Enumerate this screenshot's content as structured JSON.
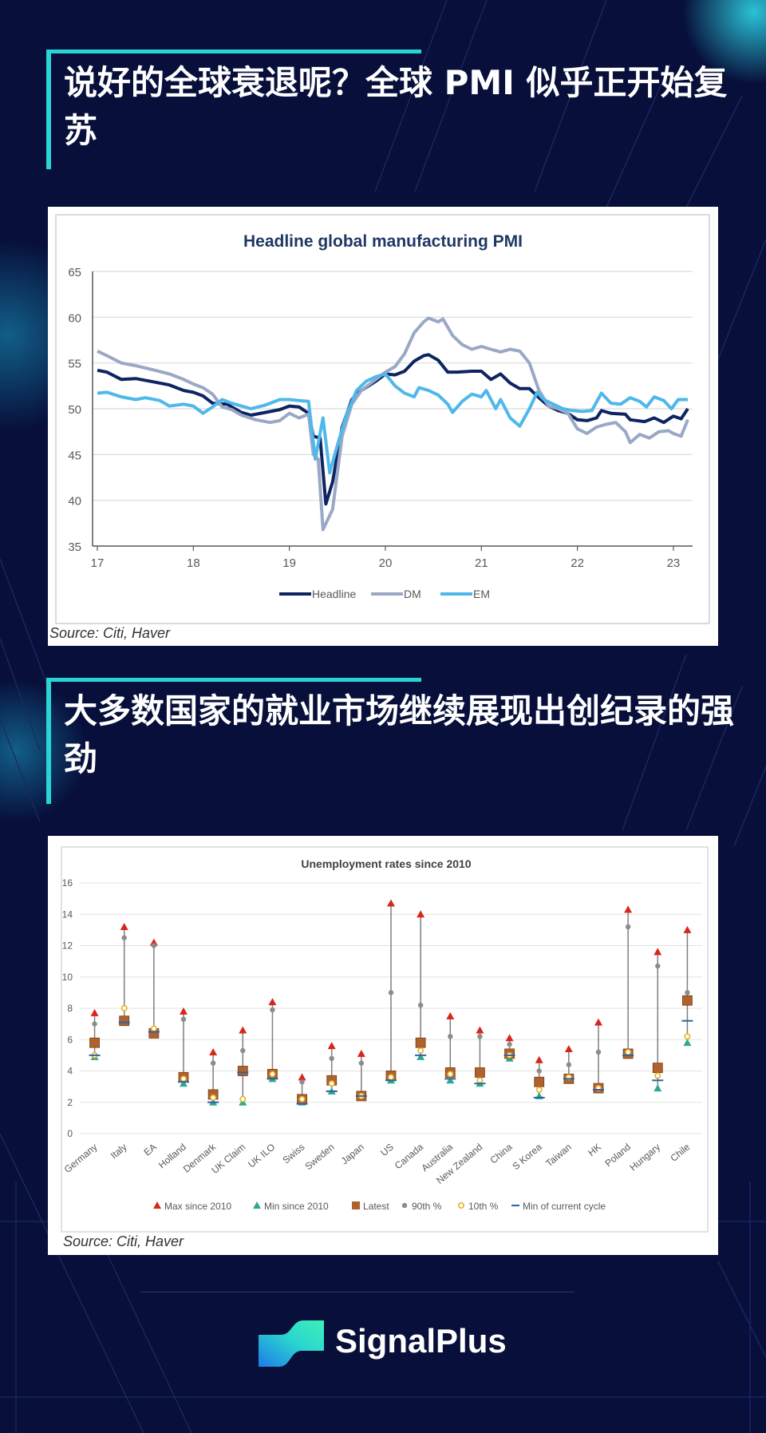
{
  "section1": {
    "heading": "说好的全球衰退呢？全球 PMI 似乎正开始复苏"
  },
  "section2": {
    "heading": "大多数国家的就业市场继续展现出创纪录的强劲"
  },
  "pmi_source": "Source: Citi, Haver",
  "unemp_source": "Source: Citi, Haver",
  "brand": {
    "name": "SignalPlus"
  },
  "colors": {
    "background": "#070f3a",
    "accent": "#29d3d6",
    "headline": "#0d2461",
    "dm": "#9aa8c6",
    "em": "#4fb8ea",
    "max": "#d9261c",
    "min": "#2ea891",
    "latest": "#b0622e",
    "p90": "#8c8c8c",
    "p10": "#e8b020",
    "cyclemin": "#2e62a8"
  },
  "chart_data": [
    {
      "type": "line",
      "title": "Headline global manufacturing PMI",
      "xlabel": "",
      "ylabel": "",
      "ylim": [
        35,
        65
      ],
      "yticks": [
        "65",
        "60",
        "55",
        "50",
        "45",
        "40",
        "35"
      ],
      "xticks": [
        {
          "label": "17",
          "x": 2017
        },
        {
          "label": "18",
          "x": 2018
        },
        {
          "label": "19",
          "x": 2019
        },
        {
          "label": "20",
          "x": 2020
        },
        {
          "label": "21",
          "x": 2021
        },
        {
          "label": "22",
          "x": 2022
        },
        {
          "label": "23",
          "x": 2023
        }
      ],
      "xlim": [
        2016.95,
        2023.2
      ],
      "legend_position": "bottom",
      "series": [
        {
          "name": "Headline",
          "color": "#0d2461",
          "width": 4,
          "points": [
            [
              2017.0,
              54.2
            ],
            [
              2017.1,
              54.0
            ],
            [
              2017.25,
              53.2
            ],
            [
              2017.4,
              53.3
            ],
            [
              2017.6,
              52.9
            ],
            [
              2017.75,
              52.6
            ],
            [
              2017.9,
              52.0
            ],
            [
              2018.0,
              51.8
            ],
            [
              2018.1,
              51.4
            ],
            [
              2018.2,
              50.6
            ],
            [
              2018.35,
              50.5
            ],
            [
              2018.5,
              49.6
            ],
            [
              2018.6,
              49.3
            ],
            [
              2018.75,
              49.6
            ],
            [
              2018.9,
              49.9
            ],
            [
              2019.0,
              50.3
            ],
            [
              2019.1,
              50.2
            ],
            [
              2019.2,
              49.5
            ],
            [
              2019.25,
              47.0
            ],
            [
              2019.32,
              46.8
            ],
            [
              2019.38,
              39.6
            ],
            [
              2019.45,
              42.0
            ],
            [
              2019.55,
              48.0
            ],
            [
              2019.65,
              51.0
            ],
            [
              2019.75,
              52.0
            ],
            [
              2019.9,
              53.0
            ],
            [
              2020.0,
              53.8
            ],
            [
              2020.1,
              53.7
            ],
            [
              2020.2,
              54.1
            ],
            [
              2020.3,
              55.2
            ],
            [
              2020.4,
              55.8
            ],
            [
              2020.45,
              55.9
            ],
            [
              2020.55,
              55.3
            ],
            [
              2020.65,
              54.0
            ],
            [
              2020.75,
              54.0
            ],
            [
              2020.9,
              54.1
            ],
            [
              2021.0,
              54.1
            ],
            [
              2021.1,
              53.2
            ],
            [
              2021.2,
              53.8
            ],
            [
              2021.3,
              52.8
            ],
            [
              2021.4,
              52.2
            ],
            [
              2021.5,
              52.2
            ],
            [
              2021.6,
              51.2
            ],
            [
              2021.7,
              50.3
            ],
            [
              2021.8,
              49.8
            ],
            [
              2021.9,
              49.5
            ],
            [
              2022.0,
              48.8
            ],
            [
              2022.1,
              48.7
            ],
            [
              2022.2,
              49.0
            ],
            [
              2022.25,
              49.8
            ],
            [
              2022.35,
              49.5
            ],
            [
              2022.5,
              49.4
            ],
            [
              2022.55,
              48.8
            ],
            [
              2022.7,
              48.6
            ],
            [
              2022.8,
              49.0
            ],
            [
              2022.9,
              48.5
            ],
            [
              2023.0,
              49.2
            ],
            [
              2023.08,
              48.9
            ],
            [
              2023.15,
              50.0
            ]
          ]
        },
        {
          "name": "DM",
          "color": "#9aa8c6",
          "width": 4,
          "points": [
            [
              2017.0,
              56.3
            ],
            [
              2017.1,
              55.8
            ],
            [
              2017.25,
              55.0
            ],
            [
              2017.4,
              54.7
            ],
            [
              2017.6,
              54.2
            ],
            [
              2017.75,
              53.8
            ],
            [
              2017.9,
              53.2
            ],
            [
              2018.0,
              52.7
            ],
            [
              2018.1,
              52.3
            ],
            [
              2018.2,
              51.6
            ],
            [
              2018.3,
              50.2
            ],
            [
              2018.4,
              49.9
            ],
            [
              2018.5,
              49.3
            ],
            [
              2018.65,
              48.8
            ],
            [
              2018.8,
              48.5
            ],
            [
              2018.9,
              48.7
            ],
            [
              2019.0,
              49.5
            ],
            [
              2019.1,
              49.0
            ],
            [
              2019.2,
              49.4
            ],
            [
              2019.25,
              45.0
            ],
            [
              2019.3,
              44.5
            ],
            [
              2019.35,
              36.8
            ],
            [
              2019.45,
              39.0
            ],
            [
              2019.55,
              47.0
            ],
            [
              2019.65,
              50.5
            ],
            [
              2019.75,
              52.0
            ],
            [
              2019.9,
              53.2
            ],
            [
              2020.0,
              54.0
            ],
            [
              2020.1,
              54.6
            ],
            [
              2020.2,
              56.0
            ],
            [
              2020.3,
              58.3
            ],
            [
              2020.4,
              59.5
            ],
            [
              2020.45,
              59.9
            ],
            [
              2020.55,
              59.5
            ],
            [
              2020.6,
              59.8
            ],
            [
              2020.7,
              58.0
            ],
            [
              2020.8,
              57.0
            ],
            [
              2020.9,
              56.5
            ],
            [
              2021.0,
              56.8
            ],
            [
              2021.1,
              56.5
            ],
            [
              2021.2,
              56.2
            ],
            [
              2021.3,
              56.5
            ],
            [
              2021.4,
              56.3
            ],
            [
              2021.5,
              55.0
            ],
            [
              2021.6,
              52.0
            ],
            [
              2021.7,
              50.3
            ],
            [
              2021.8,
              50.0
            ],
            [
              2021.9,
              49.5
            ],
            [
              2022.0,
              47.8
            ],
            [
              2022.1,
              47.3
            ],
            [
              2022.2,
              48.0
            ],
            [
              2022.3,
              48.3
            ],
            [
              2022.4,
              48.5
            ],
            [
              2022.5,
              47.5
            ],
            [
              2022.55,
              46.3
            ],
            [
              2022.65,
              47.2
            ],
            [
              2022.75,
              46.8
            ],
            [
              2022.85,
              47.5
            ],
            [
              2022.95,
              47.6
            ],
            [
              2023.0,
              47.3
            ],
            [
              2023.08,
              47.0
            ],
            [
              2023.15,
              48.8
            ]
          ]
        },
        {
          "name": "EM",
          "color": "#4fb8ea",
          "width": 4,
          "points": [
            [
              2017.0,
              51.7
            ],
            [
              2017.1,
              51.8
            ],
            [
              2017.25,
              51.3
            ],
            [
              2017.4,
              51.0
            ],
            [
              2017.5,
              51.2
            ],
            [
              2017.65,
              50.9
            ],
            [
              2017.75,
              50.3
            ],
            [
              2017.9,
              50.5
            ],
            [
              2018.0,
              50.3
            ],
            [
              2018.1,
              49.5
            ],
            [
              2018.2,
              50.2
            ],
            [
              2018.3,
              51.0
            ],
            [
              2018.4,
              50.6
            ],
            [
              2018.5,
              50.3
            ],
            [
              2018.6,
              50.0
            ],
            [
              2018.75,
              50.4
            ],
            [
              2018.9,
              51.0
            ],
            [
              2019.0,
              51.0
            ],
            [
              2019.1,
              50.9
            ],
            [
              2019.2,
              50.8
            ],
            [
              2019.27,
              44.5
            ],
            [
              2019.35,
              49.0
            ],
            [
              2019.42,
              43.0
            ],
            [
              2019.5,
              46.0
            ],
            [
              2019.6,
              49.5
            ],
            [
              2019.7,
              52.0
            ],
            [
              2019.8,
              53.0
            ],
            [
              2019.9,
              53.5
            ],
            [
              2020.0,
              53.8
            ],
            [
              2020.1,
              52.5
            ],
            [
              2020.2,
              51.7
            ],
            [
              2020.3,
              51.3
            ],
            [
              2020.35,
              52.3
            ],
            [
              2020.45,
              52.0
            ],
            [
              2020.55,
              51.5
            ],
            [
              2020.65,
              50.5
            ],
            [
              2020.7,
              49.6
            ],
            [
              2020.8,
              50.8
            ],
            [
              2020.9,
              51.6
            ],
            [
              2021.0,
              51.3
            ],
            [
              2021.05,
              52.0
            ],
            [
              2021.15,
              50.0
            ],
            [
              2021.2,
              51.0
            ],
            [
              2021.3,
              49.0
            ],
            [
              2021.4,
              48.1
            ],
            [
              2021.5,
              50.0
            ],
            [
              2021.58,
              51.8
            ],
            [
              2021.65,
              51.0
            ],
            [
              2021.75,
              50.5
            ],
            [
              2021.85,
              50.0
            ],
            [
              2021.95,
              49.8
            ],
            [
              2022.05,
              49.7
            ],
            [
              2022.15,
              49.8
            ],
            [
              2022.25,
              51.7
            ],
            [
              2022.35,
              50.6
            ],
            [
              2022.45,
              50.5
            ],
            [
              2022.55,
              51.2
            ],
            [
              2022.65,
              50.8
            ],
            [
              2022.72,
              50.2
            ],
            [
              2022.8,
              51.3
            ],
            [
              2022.9,
              50.9
            ],
            [
              2022.98,
              50.0
            ],
            [
              2023.05,
              51.0
            ],
            [
              2023.15,
              51.0
            ]
          ]
        }
      ]
    },
    {
      "type": "scatter",
      "title": "Unemployment rates since 2010",
      "xlabel": "",
      "ylabel": "",
      "ylim": [
        0,
        16
      ],
      "yticks": [
        "16",
        "14",
        "12",
        "10",
        "8",
        "6",
        "4",
        "2",
        "0"
      ],
      "legend_position": "bottom",
      "legend": [
        "Max since 2010",
        "Min since 2010",
        "Latest",
        "90th %",
        "10th %",
        "Min of current cycle"
      ],
      "categories": [
        "Germany",
        "Italy",
        "EA",
        "Holland",
        "Denmark",
        "UK Claim",
        "UK ILO",
        "Swiss",
        "Sweden",
        "Japan",
        "US",
        "Canada",
        "Australia",
        "New Zealand",
        "China",
        "S Korea",
        "Taiwan",
        "HK",
        "Poland",
        "Hungary",
        "Chile"
      ],
      "max": [
        7.7,
        13.2,
        12.2,
        7.8,
        5.2,
        6.6,
        8.4,
        3.6,
        5.6,
        5.1,
        14.7,
        14.0,
        7.5,
        6.6,
        6.1,
        4.7,
        5.4,
        7.1,
        14.3,
        11.6,
        13.0
      ],
      "min": [
        4.9,
        7.1,
        6.3,
        3.2,
        2.0,
        2.0,
        3.5,
        2.0,
        2.7,
        2.3,
        3.4,
        4.9,
        3.4,
        3.2,
        4.8,
        2.4,
        3.4,
        2.8,
        5.0,
        2.9,
        5.8
      ],
      "latest": [
        5.8,
        7.2,
        6.4,
        3.6,
        2.5,
        4.0,
        3.8,
        2.2,
        3.4,
        2.4,
        3.7,
        5.8,
        3.9,
        3.9,
        5.1,
        3.3,
        3.5,
        2.9,
        5.1,
        4.2,
        8.5
      ],
      "p90": [
        7.0,
        12.5,
        12.0,
        7.3,
        4.5,
        5.3,
        7.9,
        3.3,
        4.8,
        4.5,
        9.0,
        8.2,
        6.2,
        6.2,
        5.7,
        4.0,
        4.4,
        5.2,
        13.2,
        10.7,
        9.0
      ],
      "p10": [
        5.0,
        8.0,
        6.7,
        3.5,
        2.3,
        2.2,
        3.8,
        2.2,
        3.2,
        2.4,
        3.6,
        5.3,
        3.8,
        3.4,
        5.0,
        2.8,
        3.6,
        2.9,
        5.2,
        3.7,
        6.2
      ],
      "cycle_min": [
        5.0,
        7.1,
        6.5,
        3.3,
        2.0,
        3.9,
        3.5,
        1.9,
        2.7,
        2.4,
        3.4,
        5.0,
        3.5,
        3.2,
        5.0,
        2.3,
        3.5,
        2.8,
        5.0,
        3.4,
        7.2
      ]
    }
  ]
}
